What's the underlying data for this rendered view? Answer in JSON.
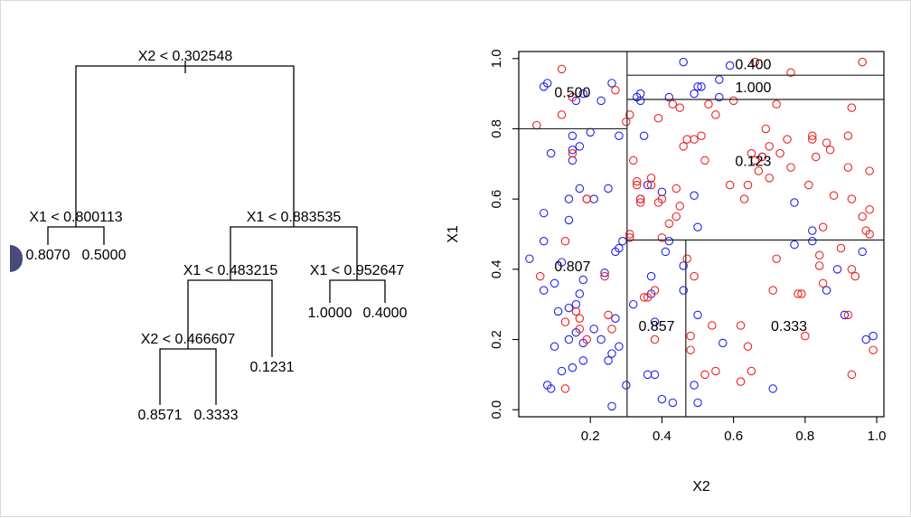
{
  "chart_data": [
    {
      "type": "tree",
      "title": "",
      "nodes": [
        {
          "id": "root",
          "split": "X2 < 0.302548",
          "left": "n1",
          "right": "n2"
        },
        {
          "id": "n1",
          "split": "X1 < 0.800113",
          "left": "l1",
          "right": "l2"
        },
        {
          "id": "n2",
          "split": "X1 < 0.883535",
          "left": "n3",
          "right": "n4"
        },
        {
          "id": "n3",
          "split": "X1 < 0.483215",
          "left": "n5",
          "right": "l6"
        },
        {
          "id": "n4",
          "split": "X1 < 0.952647",
          "left": "l7",
          "right": "l8"
        },
        {
          "id": "n5",
          "split": "X2 < 0.466607",
          "left": "l3",
          "right": "l4"
        }
      ],
      "leaves": [
        {
          "id": "l1",
          "value": "0.8070"
        },
        {
          "id": "l2",
          "value": "0.5000"
        },
        {
          "id": "l3",
          "value": "0.8571"
        },
        {
          "id": "l4",
          "value": "0.3333"
        },
        {
          "id": "l6",
          "value": "0.1231"
        },
        {
          "id": "l7",
          "value": "1.0000"
        },
        {
          "id": "l8",
          "value": "0.4000"
        }
      ]
    },
    {
      "type": "scatter",
      "title": "",
      "xlabel": "X2",
      "ylabel": "X1",
      "xlim": [
        0.0,
        1.02
      ],
      "ylim": [
        -0.02,
        1.02
      ],
      "xticks": [
        "0.2",
        "0.4",
        "0.6",
        "0.8",
        "1.0"
      ],
      "yticks": [
        "0.0",
        "0.2",
        "0.4",
        "0.6",
        "0.8",
        "1.0"
      ],
      "series": [
        {
          "color": "#2222ee",
          "points": [
            [
              0.03,
              0.43
            ],
            [
              0.07,
              0.56
            ],
            [
              0.07,
              0.48
            ],
            [
              0.07,
              0.92
            ],
            [
              0.08,
              0.93
            ],
            [
              0.09,
              0.73
            ],
            [
              0.07,
              0.34
            ],
            [
              0.08,
              0.07
            ],
            [
              0.09,
              0.06
            ],
            [
              0.1,
              0.18
            ],
            [
              0.11,
              0.28
            ],
            [
              0.1,
              0.36
            ],
            [
              0.12,
              0.11
            ],
            [
              0.12,
              0.42
            ],
            [
              0.14,
              0.6
            ],
            [
              0.14,
              0.54
            ],
            [
              0.15,
              0.74
            ],
            [
              0.15,
              0.71
            ],
            [
              0.15,
              0.78
            ],
            [
              0.17,
              0.75
            ],
            [
              0.16,
              0.88
            ],
            [
              0.18,
              0.9
            ],
            [
              0.17,
              0.63
            ],
            [
              0.16,
              0.3
            ],
            [
              0.17,
              0.33
            ],
            [
              0.18,
              0.14
            ],
            [
              0.18,
              0.19
            ],
            [
              0.14,
              0.2
            ],
            [
              0.14,
              0.29
            ],
            [
              0.15,
              0.12
            ],
            [
              0.16,
              0.22
            ],
            [
              0.18,
              0.37
            ],
            [
              0.2,
              0.79
            ],
            [
              0.21,
              0.6
            ],
            [
              0.21,
              0.23
            ],
            [
              0.23,
              0.88
            ],
            [
              0.24,
              0.39
            ],
            [
              0.23,
              0.2
            ],
            [
              0.25,
              0.14
            ],
            [
              0.26,
              0.16
            ],
            [
              0.25,
              0.63
            ],
            [
              0.26,
              0.93
            ],
            [
              0.27,
              0.45
            ],
            [
              0.28,
              0.46
            ],
            [
              0.28,
              0.78
            ],
            [
              0.29,
              0.48
            ],
            [
              0.3,
              0.07
            ],
            [
              0.26,
              0.01
            ],
            [
              0.27,
              0.26
            ],
            [
              0.28,
              0.18
            ],
            [
              0.32,
              0.3
            ],
            [
              0.34,
              0.6
            ],
            [
              0.34,
              0.88
            ],
            [
              0.35,
              0.78
            ],
            [
              0.36,
              0.64
            ],
            [
              0.34,
              0.9
            ],
            [
              0.33,
              0.89
            ],
            [
              0.37,
              0.38
            ],
            [
              0.38,
              0.25
            ],
            [
              0.37,
              0.33
            ],
            [
              0.36,
              0.1
            ],
            [
              0.38,
              0.1
            ],
            [
              0.4,
              0.62
            ],
            [
              0.42,
              0.48
            ],
            [
              0.41,
              0.45
            ],
            [
              0.42,
              0.89
            ],
            [
              0.43,
              0.02
            ],
            [
              0.46,
              0.41
            ],
            [
              0.46,
              0.34
            ],
            [
              0.46,
              0.99
            ],
            [
              0.49,
              0.9
            ],
            [
              0.49,
              0.61
            ],
            [
              0.5,
              0.52
            ],
            [
              0.49,
              0.07
            ],
            [
              0.5,
              0.27
            ],
            [
              0.5,
              0.02
            ],
            [
              0.5,
              0.92
            ],
            [
              0.51,
              0.92
            ],
            [
              0.56,
              0.89
            ],
            [
              0.56,
              0.94
            ],
            [
              0.57,
              0.19
            ],
            [
              0.59,
              0.98
            ],
            [
              0.68,
              0.72
            ],
            [
              0.71,
              0.06
            ],
            [
              0.77,
              0.47
            ],
            [
              0.77,
              0.59
            ],
            [
              0.82,
              0.51
            ],
            [
              0.82,
              0.48
            ],
            [
              0.86,
              0.34
            ],
            [
              0.89,
              0.4
            ],
            [
              0.91,
              0.27
            ],
            [
              0.96,
              0.45
            ],
            [
              0.97,
              0.2
            ],
            [
              0.99,
              0.21
            ],
            [
              0.4,
              0.03
            ]
          ]
        },
        {
          "color": "#ee2222",
          "points": [
            [
              0.05,
              0.81
            ],
            [
              0.06,
              0.38
            ],
            [
              0.12,
              0.97
            ],
            [
              0.12,
              0.84
            ],
            [
              0.13,
              0.48
            ],
            [
              0.13,
              0.25
            ],
            [
              0.13,
              0.06
            ],
            [
              0.15,
              0.89
            ],
            [
              0.15,
              0.73
            ],
            [
              0.16,
              0.28
            ],
            [
              0.17,
              0.26
            ],
            [
              0.17,
              0.23
            ],
            [
              0.19,
              0.2
            ],
            [
              0.19,
              0.6
            ],
            [
              0.19,
              0.6
            ],
            [
              0.24,
              0.38
            ],
            [
              0.25,
              0.27
            ],
            [
              0.26,
              0.23
            ],
            [
              0.27,
              0.91
            ],
            [
              0.3,
              0.82
            ],
            [
              0.31,
              0.84
            ],
            [
              0.32,
              0.71
            ],
            [
              0.31,
              0.49
            ],
            [
              0.31,
              0.5
            ],
            [
              0.33,
              0.65
            ],
            [
              0.33,
              0.64
            ],
            [
              0.34,
              0.59
            ],
            [
              0.34,
              0.6
            ],
            [
              0.35,
              0.32
            ],
            [
              0.36,
              0.32
            ],
            [
              0.37,
              0.66
            ],
            [
              0.37,
              0.64
            ],
            [
              0.38,
              0.34
            ],
            [
              0.38,
              0.2
            ],
            [
              0.39,
              0.83
            ],
            [
              0.39,
              0.59
            ],
            [
              0.4,
              0.6
            ],
            [
              0.4,
              0.49
            ],
            [
              0.42,
              0.53
            ],
            [
              0.43,
              0.87
            ],
            [
              0.44,
              0.55
            ],
            [
              0.44,
              0.63
            ],
            [
              0.45,
              0.58
            ],
            [
              0.45,
              0.86
            ],
            [
              0.46,
              0.75
            ],
            [
              0.47,
              0.77
            ],
            [
              0.47,
              0.43
            ],
            [
              0.48,
              0.17
            ],
            [
              0.48,
              0.21
            ],
            [
              0.49,
              0.77
            ],
            [
              0.49,
              0.38
            ],
            [
              0.51,
              0.78
            ],
            [
              0.52,
              0.1
            ],
            [
              0.52,
              0.71
            ],
            [
              0.53,
              0.87
            ],
            [
              0.54,
              0.24
            ],
            [
              0.55,
              0.84
            ],
            [
              0.55,
              0.11
            ],
            [
              0.59,
              0.64
            ],
            [
              0.6,
              0.88
            ],
            [
              0.62,
              0.24
            ],
            [
              0.62,
              0.08
            ],
            [
              0.63,
              0.6
            ],
            [
              0.64,
              0.18
            ],
            [
              0.64,
              0.64
            ],
            [
              0.65,
              0.11
            ],
            [
              0.65,
              0.73
            ],
            [
              0.66,
              0.71
            ],
            [
              0.66,
              0.99
            ],
            [
              0.67,
              0.68
            ],
            [
              0.68,
              0.72
            ],
            [
              0.69,
              0.8
            ],
            [
              0.7,
              0.66
            ],
            [
              0.7,
              0.75
            ],
            [
              0.71,
              0.34
            ],
            [
              0.72,
              0.43
            ],
            [
              0.72,
              0.87
            ],
            [
              0.73,
              0.73
            ],
            [
              0.75,
              0.77
            ],
            [
              0.76,
              0.96
            ],
            [
              0.76,
              0.69
            ],
            [
              0.78,
              0.33
            ],
            [
              0.79,
              0.33
            ],
            [
              0.8,
              0.21
            ],
            [
              0.81,
              0.64
            ],
            [
              0.82,
              0.78
            ],
            [
              0.82,
              0.77
            ],
            [
              0.83,
              0.72
            ],
            [
              0.84,
              0.44
            ],
            [
              0.84,
              0.41
            ],
            [
              0.85,
              0.36
            ],
            [
              0.85,
              0.52
            ],
            [
              0.86,
              0.76
            ],
            [
              0.87,
              0.74
            ],
            [
              0.88,
              0.61
            ],
            [
              0.9,
              0.46
            ],
            [
              0.92,
              0.78
            ],
            [
              0.92,
              0.69
            ],
            [
              0.93,
              0.4
            ],
            [
              0.93,
              0.86
            ],
            [
              0.93,
              0.6
            ],
            [
              0.94,
              0.38
            ],
            [
              0.96,
              0.55
            ],
            [
              0.96,
              0.99
            ],
            [
              0.97,
              0.51
            ],
            [
              0.98,
              0.5
            ],
            [
              0.98,
              0.57
            ],
            [
              0.98,
              0.68
            ],
            [
              0.99,
              0.17
            ],
            [
              0.92,
              0.27
            ],
            [
              0.93,
              0.1
            ]
          ]
        }
      ],
      "partitions": [
        {
          "dir": "v",
          "x": 0.302548,
          "y0": -0.02,
          "y1": 1.02
        },
        {
          "dir": "h",
          "y": 0.800113,
          "x0": 0.0,
          "x1": 0.302548
        },
        {
          "dir": "h",
          "y": 0.483215,
          "x0": 0.302548,
          "x1": 1.02
        },
        {
          "dir": "v",
          "x": 0.466607,
          "y0": -0.02,
          "y1": 0.483215
        },
        {
          "dir": "h",
          "y": 0.883535,
          "x0": 0.302548,
          "x1": 1.02
        },
        {
          "dir": "h",
          "y": 0.952647,
          "x0": 0.302548,
          "x1": 1.02
        }
      ],
      "region_labels": [
        {
          "text": "0.500",
          "x": 0.15,
          "y": 0.905
        },
        {
          "text": "0.807",
          "x": 0.15,
          "y": 0.41
        },
        {
          "text": "0.857",
          "x": 0.385,
          "y": 0.24
        },
        {
          "text": "0.333",
          "x": 0.755,
          "y": 0.24
        },
        {
          "text": "0.123",
          "x": 0.655,
          "y": 0.71
        },
        {
          "text": "1.000",
          "x": 0.655,
          "y": 0.92
        },
        {
          "text": "0.400",
          "x": 0.655,
          "y": 0.985
        }
      ]
    }
  ]
}
